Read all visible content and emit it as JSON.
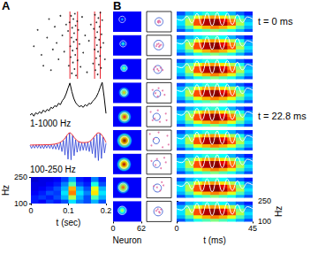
{
  "chart_data": [
    {
      "type": "scatter",
      "title": "A",
      "xlim": [
        0,
        0.2
      ],
      "ylim": [
        0,
        62
      ],
      "tick_labels": false,
      "color": "#000000",
      "points": [
        [
          0.01,
          30
        ],
        [
          0.02,
          45
        ],
        [
          0.03,
          22
        ],
        [
          0.035,
          12
        ],
        [
          0.045,
          38
        ],
        [
          0.05,
          55
        ],
        [
          0.055,
          8
        ],
        [
          0.06,
          27
        ],
        [
          0.065,
          48
        ],
        [
          0.07,
          33
        ],
        [
          0.075,
          18
        ],
        [
          0.08,
          58
        ],
        [
          0.085,
          40
        ],
        [
          0.09,
          25
        ],
        [
          0.095,
          50
        ],
        [
          0.1,
          44
        ],
        [
          0.102,
          12
        ],
        [
          0.104,
          52
        ],
        [
          0.106,
          30
        ],
        [
          0.107,
          20
        ],
        [
          0.108,
          58
        ],
        [
          0.109,
          38
        ],
        [
          0.11,
          5
        ],
        [
          0.111,
          47
        ],
        [
          0.112,
          26
        ],
        [
          0.113,
          15
        ],
        [
          0.114,
          55
        ],
        [
          0.115,
          34
        ],
        [
          0.116,
          42
        ],
        [
          0.117,
          9
        ],
        [
          0.118,
          60
        ],
        [
          0.119,
          22
        ],
        [
          0.12,
          49
        ],
        [
          0.121,
          3
        ],
        [
          0.122,
          36
        ],
        [
          0.123,
          28
        ],
        [
          0.124,
          53
        ],
        [
          0.125,
          17
        ],
        [
          0.127,
          45
        ],
        [
          0.13,
          32
        ],
        [
          0.133,
          11
        ],
        [
          0.137,
          57
        ],
        [
          0.14,
          24
        ],
        [
          0.145,
          40
        ],
        [
          0.15,
          6
        ],
        [
          0.155,
          35
        ],
        [
          0.16,
          50
        ],
        [
          0.166,
          14
        ],
        [
          0.168,
          46
        ],
        [
          0.17,
          27
        ],
        [
          0.171,
          59
        ],
        [
          0.172,
          8
        ],
        [
          0.173,
          38
        ],
        [
          0.174,
          19
        ],
        [
          0.175,
          52
        ],
        [
          0.176,
          31
        ],
        [
          0.177,
          43
        ],
        [
          0.178,
          4
        ],
        [
          0.179,
          25
        ],
        [
          0.18,
          56
        ],
        [
          0.181,
          13
        ],
        [
          0.182,
          36
        ],
        [
          0.183,
          48
        ],
        [
          0.184,
          21
        ],
        [
          0.185,
          61
        ],
        [
          0.186,
          29
        ],
        [
          0.187,
          10
        ],
        [
          0.188,
          41
        ],
        [
          0.19,
          54
        ],
        [
          0.193,
          33
        ],
        [
          0.197,
          18
        ]
      ],
      "vlines": {
        "x": [
          0.105,
          0.125,
          0.17,
          0.185
        ],
        "color": "#e8202a"
      }
    },
    {
      "type": "line",
      "title": "1-1000 Hz",
      "xlim": [
        0,
        0.2
      ],
      "ylim": [
        0,
        1.1
      ],
      "tick_labels": false,
      "color": "#000000",
      "x": [
        0,
        0.005,
        0.01,
        0.015,
        0.02,
        0.025,
        0.03,
        0.035,
        0.04,
        0.045,
        0.05,
        0.055,
        0.06,
        0.065,
        0.07,
        0.075,
        0.08,
        0.085,
        0.09,
        0.095,
        0.1,
        0.105,
        0.11,
        0.115,
        0.12,
        0.125,
        0.13,
        0.135,
        0.14,
        0.145,
        0.15,
        0.155,
        0.16,
        0.165,
        0.17,
        0.175,
        0.18,
        0.185,
        0.19,
        0.195,
        0.2
      ],
      "values": [
        0.05,
        0.1,
        0.02,
        0.12,
        0.08,
        0.15,
        0.1,
        0.2,
        0.14,
        0.22,
        0.18,
        0.28,
        0.25,
        0.33,
        0.3,
        0.4,
        0.36,
        0.48,
        0.55,
        0.68,
        0.85,
        1.0,
        0.75,
        0.55,
        0.42,
        0.35,
        0.3,
        0.33,
        0.28,
        0.36,
        0.32,
        0.4,
        0.38,
        0.46,
        0.52,
        0.6,
        0.72,
        0.88,
        1.02,
        0.6,
        0.1
      ]
    },
    {
      "type": "line",
      "title": "100-250 Hz",
      "xlim": [
        0,
        0.2
      ],
      "ylim": [
        -1.1,
        1.2
      ],
      "tick_labels": false,
      "color": "#2a3fd6",
      "x": [
        0,
        0.004,
        0.008,
        0.012,
        0.016,
        0.02,
        0.024,
        0.028,
        0.032,
        0.036,
        0.04,
        0.044,
        0.048,
        0.052,
        0.056,
        0.06,
        0.064,
        0.068,
        0.072,
        0.076,
        0.08,
        0.084,
        0.088,
        0.092,
        0.096,
        0.1,
        0.104,
        0.108,
        0.112,
        0.116,
        0.12,
        0.124,
        0.128,
        0.132,
        0.136,
        0.14,
        0.144,
        0.148,
        0.152,
        0.156,
        0.16,
        0.164,
        0.168,
        0.172,
        0.176,
        0.18,
        0.184,
        0.188,
        0.192,
        0.196,
        0.2
      ],
      "values": [
        0.1,
        -0.12,
        0.1,
        -0.1,
        0.12,
        -0.1,
        0.14,
        -0.12,
        0.1,
        -0.14,
        0.12,
        -0.1,
        0.15,
        -0.12,
        0.14,
        -0.16,
        0.15,
        -0.18,
        0.2,
        -0.22,
        0.3,
        -0.35,
        0.45,
        -0.6,
        0.75,
        -0.9,
        1.0,
        -0.95,
        0.8,
        -0.65,
        0.5,
        -0.4,
        0.35,
        -0.3,
        0.28,
        -0.25,
        0.3,
        -0.28,
        0.3,
        -0.35,
        0.4,
        -0.5,
        0.65,
        -0.8,
        0.9,
        -1.0,
        0.95,
        -0.85,
        0.7,
        -0.45,
        0.25
      ],
      "envelope": {
        "x": [
          0,
          0.02,
          0.04,
          0.06,
          0.07,
          0.08,
          0.09,
          0.1,
          0.105,
          0.11,
          0.12,
          0.13,
          0.14,
          0.15,
          0.16,
          0.17,
          0.18,
          0.19,
          0.2
        ],
        "values": [
          0.12,
          0.13,
          0.14,
          0.17,
          0.22,
          0.33,
          0.55,
          0.92,
          1.0,
          0.9,
          0.55,
          0.35,
          0.3,
          0.32,
          0.45,
          0.75,
          1.0,
          0.8,
          0.3
        ],
        "color": "#e8202a"
      }
    },
    {
      "type": "heatmap",
      "xlabel": "t (sec)",
      "ylabel": "Hz",
      "xlim": [
        0,
        0.2
      ],
      "ylim": [
        100,
        250
      ],
      "xticks": [
        0,
        0.1,
        0.2
      ],
      "yticks": [
        100,
        250
      ],
      "zlim": [
        0,
        1
      ],
      "x_edges": [
        0,
        0.02,
        0.04,
        0.06,
        0.08,
        0.1,
        0.12,
        0.14,
        0.16,
        0.18,
        0.2
      ],
      "y_edges": [
        100,
        125,
        150,
        175,
        200,
        225,
        250
      ],
      "cells": [
        [
          0.15,
          0.12,
          0.18,
          0.15,
          0.2,
          0.35,
          0.25,
          0.2,
          0.3,
          0.2
        ],
        [
          0.15,
          0.18,
          0.15,
          0.2,
          0.3,
          0.55,
          0.3,
          0.2,
          0.45,
          0.3
        ],
        [
          0.12,
          0.15,
          0.2,
          0.18,
          0.35,
          0.75,
          0.35,
          0.25,
          0.65,
          0.35
        ],
        [
          0.1,
          0.12,
          0.15,
          0.2,
          0.3,
          0.7,
          0.3,
          0.2,
          0.6,
          0.3
        ],
        [
          0.1,
          0.1,
          0.12,
          0.15,
          0.25,
          0.45,
          0.2,
          0.15,
          0.4,
          0.2
        ],
        [
          0.08,
          0.1,
          0.1,
          0.12,
          0.18,
          0.3,
          0.15,
          0.12,
          0.25,
          0.15
        ]
      ]
    },
    {
      "type": "heatmap",
      "title": "B",
      "xlabel": "Neuron",
      "xlim": [
        0,
        62
      ],
      "ylim": [
        0,
        62
      ],
      "xticks": [
        0,
        62
      ],
      "zlim": [
        0,
        1
      ],
      "circle_color": "#d8e8ff",
      "blobs": [
        {
          "x": 20,
          "y": 38,
          "r": 5,
          "peak": 0.35
        },
        {
          "x": 22,
          "y": 36,
          "r": 7,
          "peak": 0.45
        },
        {
          "x": 24,
          "y": 34,
          "r": 10,
          "peak": 0.55
        },
        {
          "x": 24,
          "y": 32,
          "r": 13,
          "peak": 0.7
        },
        {
          "x": 25,
          "y": 30,
          "r": 16,
          "peak": 0.85
        },
        {
          "x": 25,
          "y": 30,
          "r": 18,
          "peak": 1.0
        },
        {
          "x": 24,
          "y": 30,
          "r": 17,
          "peak": 0.95
        },
        {
          "x": 22,
          "y": 32,
          "r": 15,
          "peak": 0.8
        },
        {
          "x": 20,
          "y": 34,
          "r": 12,
          "peak": 0.6
        }
      ],
      "circles": [
        {
          "x": 20,
          "y": 38,
          "r": 7
        },
        {
          "x": 22,
          "y": 36,
          "r": 7
        },
        {
          "x": 24,
          "y": 34,
          "r": 7
        },
        {
          "x": 24,
          "y": 32,
          "r": 7
        },
        {
          "x": 25,
          "y": 30,
          "r": 9
        },
        {
          "x": 25,
          "y": 30,
          "r": 9
        },
        {
          "x": 24,
          "y": 30,
          "r": 9
        },
        {
          "x": 22,
          "y": 32,
          "r": 9
        },
        {
          "x": 20,
          "y": 34,
          "r": 9
        }
      ],
      "annotations": [
        {
          "row": 0,
          "text": "t = 0 ms"
        },
        {
          "row": 4,
          "text": "t = 22.8 ms"
        }
      ]
    },
    {
      "type": "scatter",
      "xlim": [
        0,
        62
      ],
      "ylim": [
        0,
        62
      ],
      "tick_labels": false,
      "color": "#e0609a",
      "circle_color": "#4060d0",
      "rows": [
        {
          "circle": {
            "x": 31,
            "y": 31,
            "r": 10
          },
          "points": [
            [
              28,
              30
            ],
            [
              32,
              34
            ],
            [
              30,
              28
            ],
            [
              34,
              30
            ],
            [
              29,
              33
            ]
          ]
        },
        {
          "circle": {
            "x": 30,
            "y": 32,
            "r": 12
          },
          "points": [
            [
              26,
              34
            ],
            [
              33,
              30
            ],
            [
              30,
              36
            ],
            [
              36,
              33
            ],
            [
              24,
              29
            ],
            [
              31,
              27
            ]
          ]
        },
        {
          "circle": {
            "x": 28,
            "y": 30,
            "r": 10
          },
          "points": [
            [
              22,
              38
            ],
            [
              30,
              26
            ],
            [
              35,
              35
            ],
            [
              27,
              31
            ],
            [
              40,
              28
            ],
            [
              18,
              30
            ]
          ]
        },
        {
          "circle": {
            "x": 26,
            "y": 28,
            "r": 9
          },
          "points": [
            [
              15,
              40
            ],
            [
              28,
              20
            ],
            [
              40,
              38
            ],
            [
              22,
              30
            ],
            [
              45,
              25
            ],
            [
              30,
              45
            ]
          ]
        },
        {
          "circle": {
            "x": 25,
            "y": 30,
            "r": 9
          },
          "points": [
            [
              10,
              45
            ],
            [
              33,
              15
            ],
            [
              48,
              40
            ],
            [
              20,
              25
            ],
            [
              50,
              20
            ],
            [
              28,
              50
            ],
            [
              15,
              20
            ]
          ]
        },
        {
          "circle": {
            "x": 24,
            "y": 30,
            "r": 8
          },
          "points": [
            [
              8,
              50
            ],
            [
              40,
              10
            ],
            [
              52,
              45
            ],
            [
              18,
              35
            ],
            [
              55,
              18
            ],
            [
              30,
              55
            ],
            [
              12,
              15
            ]
          ]
        },
        {
          "circle": {
            "x": 25,
            "y": 31,
            "r": 9
          },
          "points": [
            [
              12,
              40
            ],
            [
              36,
              18
            ],
            [
              48,
              36
            ],
            [
              22,
              28
            ],
            [
              44,
              50
            ],
            [
              26,
              46
            ]
          ]
        },
        {
          "circle": {
            "x": 27,
            "y": 30,
            "r": 10
          },
          "points": [
            [
              18,
              36
            ],
            [
              34,
              22
            ],
            [
              42,
              38
            ],
            [
              26,
              32
            ],
            [
              38,
              48
            ]
          ]
        },
        {
          "circle": {
            "x": 29,
            "y": 31,
            "r": 11
          },
          "points": [
            [
              24,
              33
            ],
            [
              33,
              27
            ],
            [
              36,
              37
            ],
            [
              28,
              38
            ],
            [
              31,
              30
            ]
          ]
        }
      ]
    },
    {
      "type": "heatmap",
      "xlabel": "t (ms)",
      "ylabel": "Hz",
      "xlim": [
        0,
        45
      ],
      "ylim": [
        100,
        250
      ],
      "xticks": [
        0,
        45
      ],
      "yticks": [
        100,
        250
      ],
      "zlim": [
        0,
        1
      ],
      "x_edges": [
        0,
        5,
        10,
        15,
        20,
        25,
        30,
        35,
        40,
        45
      ],
      "y_edges": [
        100,
        125,
        150,
        175,
        200,
        225,
        250
      ],
      "cells": [
        [
          0.2,
          0.3,
          0.4,
          0.45,
          0.5,
          0.45,
          0.4,
          0.3,
          0.2
        ],
        [
          0.3,
          0.45,
          0.6,
          0.7,
          0.75,
          0.7,
          0.6,
          0.45,
          0.3
        ],
        [
          0.35,
          0.55,
          0.8,
          0.95,
          1.0,
          0.95,
          0.8,
          0.55,
          0.35
        ],
        [
          0.35,
          0.55,
          0.8,
          0.95,
          0.98,
          0.9,
          0.75,
          0.5,
          0.3
        ],
        [
          0.3,
          0.45,
          0.6,
          0.7,
          0.72,
          0.65,
          0.55,
          0.4,
          0.25
        ],
        [
          0.2,
          0.3,
          0.35,
          0.4,
          0.42,
          0.38,
          0.3,
          0.22,
          0.15
        ]
      ],
      "trace": {
        "x": [
          0,
          3,
          6,
          9,
          12,
          15,
          18,
          21,
          24,
          27,
          30,
          33,
          36,
          39,
          42,
          45
        ],
        "values": [
          195,
          185,
          215,
          165,
          235,
          150,
          240,
          145,
          242,
          148,
          238,
          155,
          225,
          170,
          210,
          195
        ],
        "color": "#ffffff"
      }
    }
  ]
}
